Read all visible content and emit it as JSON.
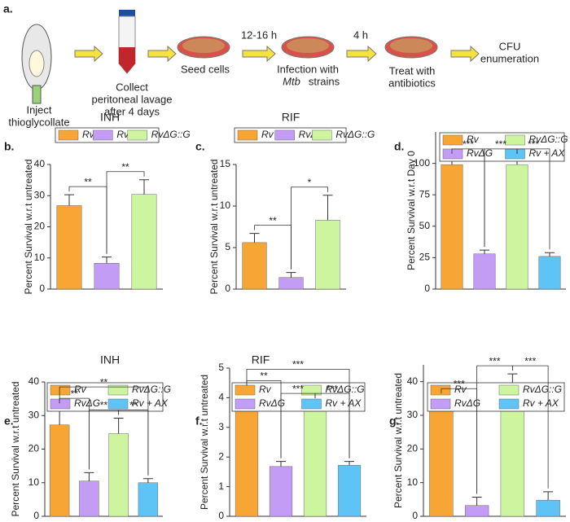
{
  "workflow": {
    "panel_label": "a.",
    "steps": [
      {
        "lines": [
          "Inject",
          "thioglycollate"
        ]
      },
      {
        "lines": [
          "Collect",
          "peritoneal lavage",
          "after 4 days"
        ]
      },
      {
        "lines": [
          "Seed cells"
        ]
      },
      {
        "lines": [
          "Infection with",
          "Mtb",
          "strains"
        ]
      },
      {
        "lines": [
          "Treat with",
          "antibiotics"
        ]
      },
      {
        "lines": [
          "CFU",
          "enumeration"
        ]
      }
    ],
    "arrow_labels": [
      "12-16 h",
      "4 h"
    ]
  },
  "chart_data": [
    {
      "type": "bar",
      "panel_label": "b.",
      "title": "INH",
      "ylabel": "Percent Survival w.r.t untreated",
      "ylim": [
        0,
        40
      ],
      "yticks": [
        0,
        10,
        20,
        30,
        40
      ],
      "series": [
        {
          "name": "Rv",
          "color": "#f7a535",
          "values": [
            26.8
          ],
          "errors": [
            3.5
          ]
        },
        {
          "name": "RvΔG",
          "color": "#c39cf5",
          "values": [
            8.3
          ],
          "errors": [
            2
          ]
        },
        {
          "name": "RvΔG::G",
          "color": "#cdf5a0",
          "values": [
            30.4
          ],
          "errors": [
            4.7
          ]
        }
      ],
      "annotations": [
        "**",
        "**"
      ]
    },
    {
      "type": "bar",
      "panel_label": "c.",
      "title": "RIF",
      "ylabel": "Percent Survival w.r.t untreated",
      "ylim": [
        0,
        15
      ],
      "yticks": [
        0,
        5,
        10,
        15
      ],
      "series": [
        {
          "name": "Rv",
          "color": "#f7a535",
          "values": [
            5.6
          ],
          "errors": [
            1.1
          ]
        },
        {
          "name": "RvΔG",
          "color": "#c39cf5",
          "values": [
            1.4
          ],
          "errors": [
            0.6
          ]
        },
        {
          "name": "RvΔG::G",
          "color": "#cdf5a0",
          "values": [
            8.3
          ],
          "errors": [
            3
          ]
        }
      ],
      "annotations": [
        "**",
        "*"
      ]
    },
    {
      "type": "bar",
      "panel_label": "d.",
      "ylabel": "Percent Survival w.r.t Day 0",
      "ylim": [
        0,
        125
      ],
      "yticks": [
        0,
        25,
        50,
        75,
        100
      ],
      "series": [
        {
          "name": "Rv",
          "color": "#f7a535",
          "values": [
            99
          ],
          "errors": [
            6
          ]
        },
        {
          "name": "RvΔG",
          "color": "#c39cf5",
          "values": [
            28
          ],
          "errors": [
            3
          ]
        },
        {
          "name": "RvΔG::G",
          "color": "#cdf5a0",
          "values": [
            99
          ],
          "errors": [
            6
          ]
        },
        {
          "name": "Rv + AX",
          "color": "#5ec4f5",
          "values": [
            26
          ],
          "errors": [
            3
          ]
        }
      ],
      "annotations": [
        "***",
        "***",
        "***"
      ]
    },
    {
      "type": "bar",
      "panel_label": "e.",
      "title": "INH",
      "ylabel": "Percent Survival w.r.t untreated",
      "ylim": [
        0,
        40
      ],
      "yticks": [
        0,
        10,
        20,
        30,
        40
      ],
      "series": [
        {
          "name": "Rv",
          "color": "#f7a535",
          "values": [
            27.2
          ],
          "errors": [
            5.5
          ]
        },
        {
          "name": "RvΔG",
          "color": "#c39cf5",
          "values": [
            10.5
          ],
          "errors": [
            2.5
          ]
        },
        {
          "name": "RvΔG::G",
          "color": "#cdf5a0",
          "values": [
            24.6
          ],
          "errors": [
            4.6
          ]
        },
        {
          "name": "Rv + AX",
          "color": "#5ec4f5",
          "values": [
            10
          ],
          "errors": [
            1.2
          ]
        }
      ],
      "annotations": [
        "**",
        "**",
        "**",
        "**"
      ]
    },
    {
      "type": "bar",
      "panel_label": "f.",
      "title": "RIF",
      "ylabel": "Percent Survival w.r.t untreated",
      "ylim": [
        0,
        5
      ],
      "yticks": [
        0,
        1,
        2,
        3,
        4,
        5
      ],
      "series": [
        {
          "name": "Rv",
          "color": "#f7a535",
          "values": [
            3.65
          ],
          "errors": [
            0.65
          ]
        },
        {
          "name": "RvΔG",
          "color": "#c39cf5",
          "values": [
            1.68
          ],
          "errors": [
            0.17
          ]
        },
        {
          "name": "RvΔG::G",
          "color": "#cdf5a0",
          "values": [
            3.62
          ],
          "errors": [
            0.25
          ]
        },
        {
          "name": "Rv + AX",
          "color": "#5ec4f5",
          "values": [
            1.72
          ],
          "errors": [
            0.13
          ]
        }
      ],
      "annotations": [
        "**",
        "***",
        "***",
        "***"
      ]
    },
    {
      "type": "bar",
      "panel_label": "g.",
      "ylabel": "Percent Survival w.r.t untreated",
      "ylim": [
        0,
        45
      ],
      "yticks": [
        0,
        10,
        20,
        30,
        40
      ],
      "series": [
        {
          "name": "Rv",
          "color": "#f7a535",
          "values": [
            31.5
          ],
          "errors": [
            4
          ]
        },
        {
          "name": "RvΔG",
          "color": "#c39cf5",
          "values": [
            3.2
          ],
          "errors": [
            2.5
          ]
        },
        {
          "name": "RvΔG::G",
          "color": "#cdf5a0",
          "values": [
            36.8
          ],
          "errors": [
            5.5
          ]
        },
        {
          "name": "Rv + AX",
          "color": "#5ec4f5",
          "values": [
            4.8
          ],
          "errors": [
            2.5
          ]
        }
      ],
      "annotations": [
        "***",
        "***",
        "***"
      ]
    }
  ]
}
